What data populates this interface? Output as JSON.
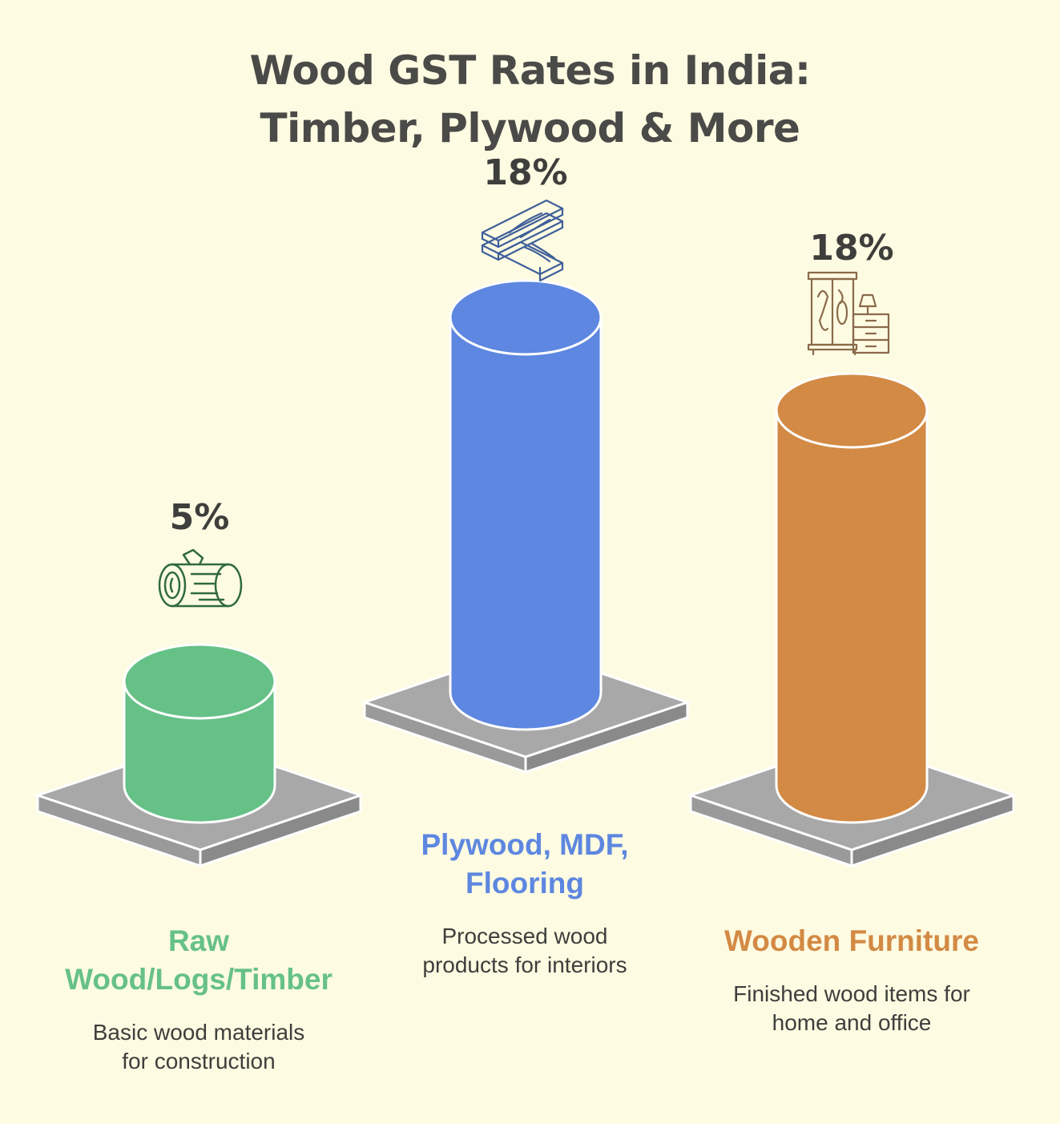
{
  "title_line1": "Wood GST Rates in India:",
  "title_line2": "Timber, Plywood & More",
  "chart_data": {
    "type": "bar",
    "title": "Wood GST Rates in India: Timber, Plywood & More",
    "categories": [
      "Raw Wood/Logs/Timber",
      "Plywood, MDF, Flooring",
      "Wooden Furniture"
    ],
    "values": [
      5,
      18,
      18
    ],
    "unit": "%",
    "value_labels": [
      "5%",
      "18%",
      "18%"
    ],
    "descriptions": [
      "Basic wood materials for construction",
      "Processed wood products for interiors",
      "Finished wood items for home and office"
    ],
    "colors": [
      "#66c187",
      "#5d87e0",
      "#d38a44"
    ],
    "icons": [
      "log-icon",
      "wood-planks-icon",
      "furniture-icon"
    ]
  },
  "labels": {
    "raw": {
      "line1": "Raw",
      "line2": "Wood/Logs/Timber",
      "desc1": "Basic wood materials",
      "desc2": "for construction"
    },
    "ply": {
      "line1": "Plywood, MDF,",
      "line2": "Flooring",
      "desc1": "Processed wood",
      "desc2": "products for interiors"
    },
    "furn": {
      "line1": "Wooden Furniture",
      "desc1": "Finished wood items for",
      "desc2": "home and office"
    }
  }
}
